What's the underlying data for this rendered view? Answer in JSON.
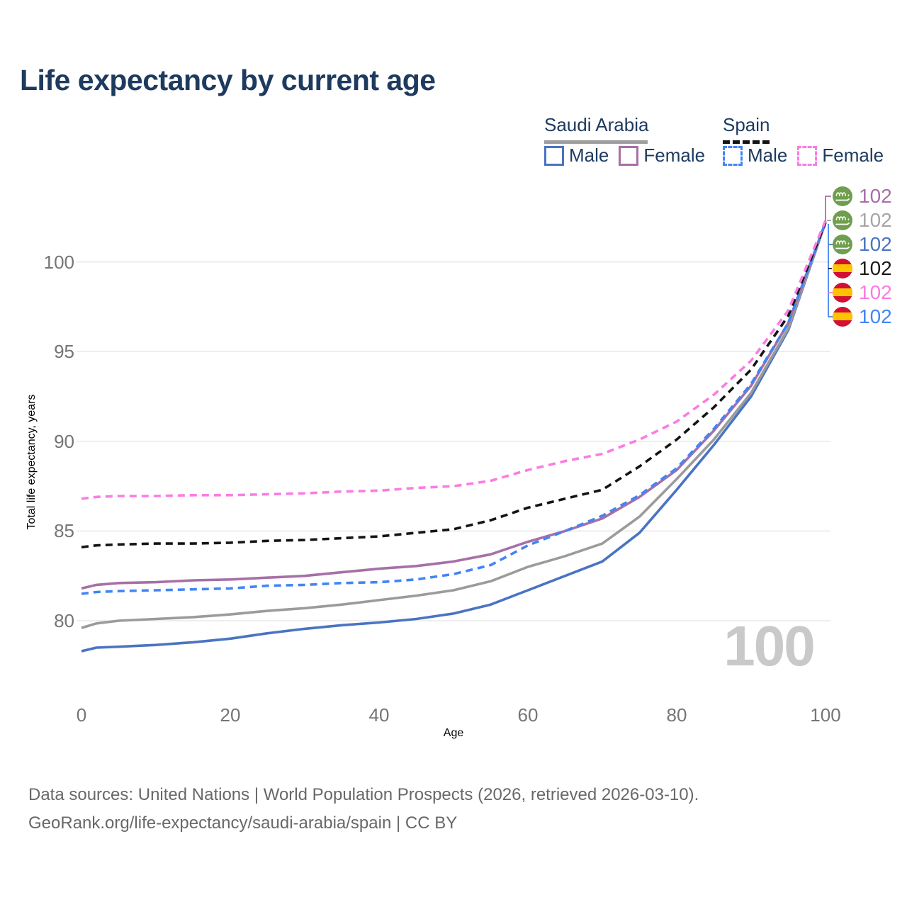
{
  "title": "Life expectancy by current age",
  "legend": {
    "groups": [
      {
        "label": "Saudi Arabia",
        "line_style": "solid",
        "underline_color": "#9e9e9e",
        "items": [
          {
            "label": "Male",
            "color": "#4a74c2"
          },
          {
            "label": "Female",
            "color": "#a76fa8"
          }
        ]
      },
      {
        "label": "Spain",
        "line_style": "dashed",
        "underline_color": "#141414",
        "items": [
          {
            "label": "Male",
            "color": "#4285f4"
          },
          {
            "label": "Female",
            "color": "#fa7ce3"
          }
        ]
      }
    ]
  },
  "axes": {
    "x_title": "Age",
    "y_title": "Total life expectancy, years",
    "x_ticks": [
      "0",
      "20",
      "40",
      "60",
      "80",
      "100"
    ],
    "y_ticks": [
      "100",
      "95",
      "90",
      "85",
      "80"
    ],
    "grid_color": "#e9e9e9",
    "text_color": "#757575"
  },
  "watermark": "100",
  "end_labels": [
    {
      "flag": "saudi-arabia",
      "value": "102",
      "color": "#a76fa8"
    },
    {
      "flag": "saudi-arabia",
      "value": "102",
      "color": "#a6a6a6"
    },
    {
      "flag": "saudi-arabia",
      "value": "102",
      "color": "#4a74c2"
    },
    {
      "flag": "spain",
      "value": "102",
      "color": "#1a1a1a"
    },
    {
      "flag": "spain",
      "value": "102",
      "color": "#fa7ce3"
    },
    {
      "flag": "spain",
      "value": "102",
      "color": "#4285f4"
    }
  ],
  "flag_colors": {
    "saudi-arabia": {
      "bg": "#6f9e4e",
      "emblem": "#ffffff"
    },
    "spain": {
      "bg": "#d21034",
      "band": "#ffc400"
    }
  },
  "footer": {
    "line1": "Data sources: United Nations | World Population Prospects (2026, retrieved 2026-03-10).",
    "line2": "GeoRank.org/life-expectancy/saudi-arabia/spain | CC BY"
  },
  "chart_data": {
    "type": "line",
    "title": "Life expectancy by current age",
    "xlabel": "Age",
    "ylabel": "Total life expectancy, years",
    "xlim": [
      0,
      100
    ],
    "ylim": [
      77,
      103
    ],
    "grid": "horizontal",
    "legend_position": "top-right",
    "x": [
      0,
      2,
      5,
      10,
      15,
      20,
      25,
      30,
      35,
      40,
      45,
      50,
      55,
      60,
      65,
      70,
      75,
      80,
      85,
      90,
      95,
      100
    ],
    "series": [
      {
        "name": "Saudi Arabia Male",
        "color": "#4a74c2",
        "dash": "solid",
        "values": [
          78.3,
          78.5,
          78.55,
          78.65,
          78.8,
          79.0,
          79.3,
          79.55,
          79.75,
          79.9,
          80.1,
          80.4,
          80.9,
          81.7,
          82.5,
          83.3,
          84.9,
          87.3,
          89.8,
          92.5,
          96.2,
          102.2
        ]
      },
      {
        "name": "Saudi Arabia Both sexes",
        "color": "#9b9b9b",
        "dash": "solid",
        "values": [
          79.6,
          79.85,
          80.0,
          80.1,
          80.2,
          80.35,
          80.55,
          80.7,
          80.9,
          81.15,
          81.4,
          81.7,
          82.2,
          83.0,
          83.6,
          84.3,
          85.8,
          87.9,
          90.1,
          92.7,
          96.3,
          102.2
        ]
      },
      {
        "name": "Saudi Arabia Female",
        "color": "#a76fa8",
        "dash": "solid",
        "values": [
          81.8,
          82.0,
          82.1,
          82.15,
          82.25,
          82.3,
          82.4,
          82.5,
          82.7,
          82.9,
          83.05,
          83.3,
          83.7,
          84.4,
          85.0,
          85.7,
          86.9,
          88.4,
          90.6,
          93.1,
          96.6,
          102.2
        ]
      },
      {
        "name": "Spain Male",
        "color": "#4285f4",
        "dash": "dashed",
        "values": [
          81.5,
          81.6,
          81.65,
          81.7,
          81.75,
          81.8,
          81.95,
          82.0,
          82.1,
          82.15,
          82.3,
          82.6,
          83.1,
          84.2,
          85.0,
          85.85,
          87.0,
          88.5,
          90.7,
          93.2,
          96.6,
          102.2
        ]
      },
      {
        "name": "Spain Both sexes",
        "color": "#141414",
        "dash": "dashed",
        "values": [
          84.1,
          84.2,
          84.25,
          84.3,
          84.3,
          84.35,
          84.45,
          84.5,
          84.6,
          84.7,
          84.9,
          85.1,
          85.6,
          86.3,
          86.8,
          87.3,
          88.6,
          90.1,
          91.9,
          94.0,
          97.0,
          102.2
        ]
      },
      {
        "name": "Spain Female",
        "color": "#fa7ce3",
        "dash": "dashed",
        "values": [
          86.8,
          86.9,
          86.95,
          86.95,
          87.0,
          87.0,
          87.05,
          87.1,
          87.2,
          87.25,
          87.4,
          87.5,
          87.8,
          88.4,
          88.9,
          89.3,
          90.1,
          91.1,
          92.6,
          94.5,
          97.3,
          102.3
        ]
      }
    ]
  }
}
